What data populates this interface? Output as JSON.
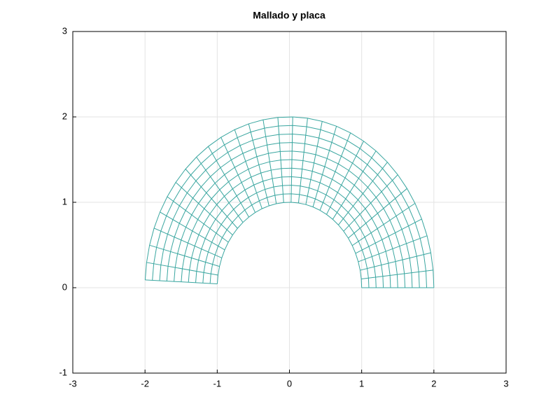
{
  "chart_data": {
    "type": "mesh",
    "title": "Mallado y placa",
    "radii": [
      1,
      1.1,
      1.2,
      1.3,
      1.4,
      1.5,
      1.6,
      1.7,
      1.8,
      1.9,
      2
    ],
    "angles": [
      0,
      5.9,
      11.8,
      17.7,
      23.7,
      29.6,
      35.5,
      41.4,
      47.3,
      53.2,
      59.1,
      65.0,
      71.0,
      76.9,
      82.8,
      88.7,
      94.6,
      100.5,
      106.4,
      112.3,
      118.3,
      124.2,
      130.1,
      136.0,
      141.9,
      147.8,
      153.7,
      159.6,
      165.6,
      171.5,
      177.4
    ],
    "color": "#3aa6a0",
    "xlim": [
      -3,
      3
    ],
    "ylim": [
      -1,
      3
    ],
    "xticks": [
      -3,
      -2,
      -1,
      0,
      1,
      2,
      3
    ],
    "yticks": [
      -1,
      0,
      1,
      2,
      3
    ],
    "grid": true
  }
}
